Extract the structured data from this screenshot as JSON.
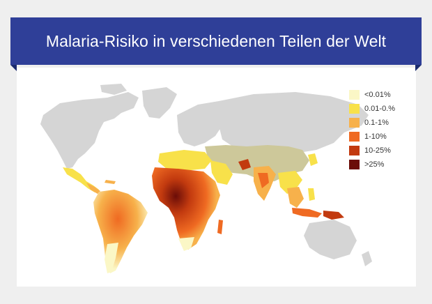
{
  "title": "Malaria-Risiko in verschiedenen Teilen der Welt",
  "legend": [
    {
      "label": "<0.01%",
      "color": "#fbf7c6"
    },
    {
      "label": "0.01-0.%",
      "color": "#f8e14a"
    },
    {
      "label": "0.1-1%",
      "color": "#f7b14b"
    },
    {
      "label": "1-10%",
      "color": "#ef6a22"
    },
    {
      "label": "10-25%",
      "color": "#c23a0f"
    },
    {
      "label": ">25%",
      "color": "#6b0d08"
    }
  ],
  "colors": {
    "background": "#efefef",
    "banner": "#2f3f98",
    "banner_fold": "#1a2a6e",
    "no_risk_land": "#d5d5d5"
  }
}
